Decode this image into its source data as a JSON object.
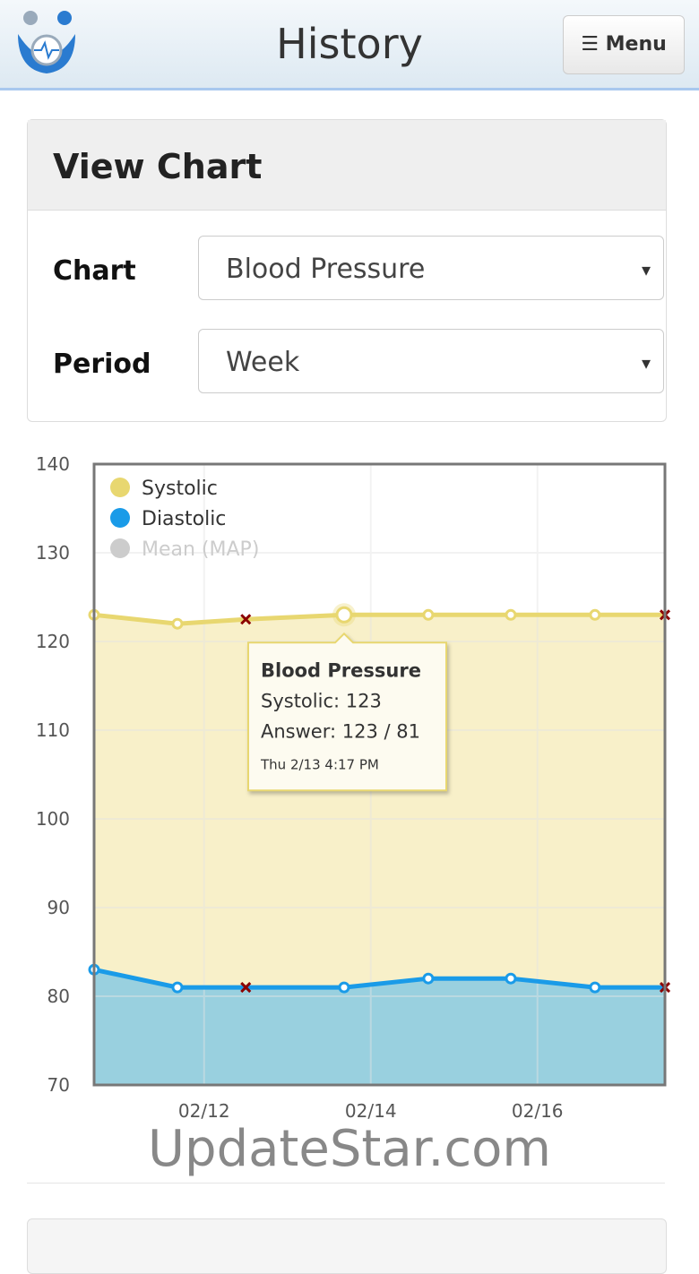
{
  "header": {
    "title": "History",
    "menu": "Menu"
  },
  "panel": {
    "title": "View Chart",
    "fields": [
      {
        "label": "Chart",
        "value": "Blood Pressure"
      },
      {
        "label": "Period",
        "value": "Week"
      }
    ]
  },
  "chart_data": {
    "type": "line",
    "x": [
      10.68,
      11.68,
      12.5,
      13.68,
      14.69,
      15.68,
      16.69,
      17.53
    ],
    "markers": [
      "circle",
      "circle",
      "cross",
      "circle",
      "circle",
      "circle",
      "circle",
      "cross"
    ],
    "series": [
      {
        "name": "Systolic",
        "color": "#e8d770",
        "area_color": "#f8efc6",
        "values": [
          123,
          122,
          122.5,
          123,
          123,
          123,
          123,
          123
        ]
      },
      {
        "name": "Diastolic",
        "color": "#1a9be8",
        "area_color": "#94cde0",
        "values": [
          83,
          81,
          81,
          81,
          82,
          82,
          81,
          81
        ]
      },
      {
        "name": "Mean (MAP)",
        "color": "#cccccc",
        "hidden": true,
        "values": [
          null,
          null,
          null,
          null,
          null,
          null,
          null,
          null
        ]
      }
    ],
    "xlim": [
      10.68,
      17.53
    ],
    "xticks": [
      {
        "value": 12,
        "label": "02/12"
      },
      {
        "value": 14,
        "label": "02/14"
      },
      {
        "value": 16,
        "label": "02/16"
      }
    ],
    "ylim": [
      70,
      140
    ],
    "yticks": [
      70,
      80,
      90,
      100,
      110,
      120,
      130,
      140
    ],
    "grid": true,
    "tooltip": {
      "point": 3,
      "title": "Blood Pressure",
      "lines": [
        "Systolic: 123",
        "Answer: 123 / 81"
      ],
      "time": "Thu 2/13 4:17 PM"
    }
  },
  "watermark": "UpdateStar.com"
}
